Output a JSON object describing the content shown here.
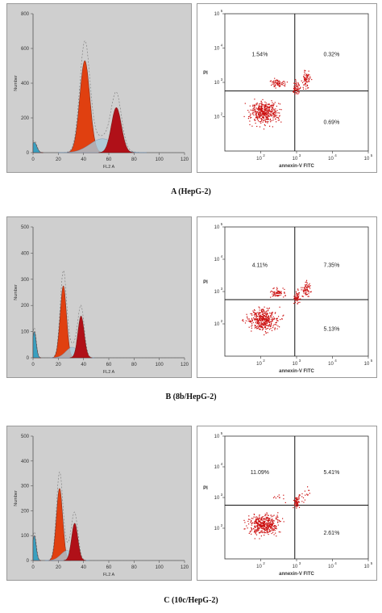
{
  "figure_labels": [
    "A (HepG-2)",
    "B (8b/HepG-2)",
    "C (10c/HepG-2)"
  ],
  "colors": {
    "g0g1": "#e04010",
    "s_phase": "#a8c8d8",
    "g2m": "#b01018",
    "debris": "#3aa0c0",
    "dots": "#cc1010",
    "hist_bg": "#cfcfcf"
  },
  "chart_data": [
    {
      "type": "area",
      "panel": "A",
      "xlabel": "FL2 A",
      "ylabel": "Number",
      "xlim": [
        0,
        120
      ],
      "ylim": [
        0,
        800
      ],
      "xticks": [
        "0",
        "20",
        "40",
        "60",
        "80",
        "100",
        "120"
      ],
      "yticks": [
        "0",
        "200",
        "400",
        "600",
        "800"
      ],
      "peaks": [
        {
          "phase": "debris",
          "center": 1,
          "height": 60,
          "width": 2
        },
        {
          "phase": "G0/G1",
          "center": 41,
          "height": 530,
          "width": 4
        },
        {
          "phase": "S",
          "center": 55,
          "height": 80,
          "width": 10
        },
        {
          "phase": "G2/M",
          "center": 66,
          "height": 260,
          "width": 4
        }
      ]
    },
    {
      "type": "scatter",
      "panel": "A",
      "xlabel": "annexin-V FITC",
      "ylabel": "PI",
      "xscale": "log",
      "yscale": "log",
      "xticks": [
        "10",
        "10",
        "10",
        "10"
      ],
      "xtick_exp": [
        "2",
        "3",
        "4",
        "5"
      ],
      "yticks": [
        "10",
        "10",
        "10",
        "10"
      ],
      "ytick_exp": [
        "2",
        "3",
        "4",
        "5"
      ],
      "quadrants": {
        "upper_left": "1.54%",
        "upper_right": "0.32%",
        "lower_right": "0.69%"
      }
    },
    {
      "type": "area",
      "panel": "B",
      "xlabel": "FL2 A",
      "ylabel": "Number",
      "xlim": [
        0,
        120
      ],
      "ylim": [
        0,
        500
      ],
      "xticks": [
        "0",
        "20",
        "40",
        "60",
        "80",
        "100",
        "120"
      ],
      "yticks": [
        "0",
        "100",
        "200",
        "300",
        "400",
        "500"
      ],
      "peaks": [
        {
          "phase": "debris",
          "center": 1,
          "height": 100,
          "width": 1.5
        },
        {
          "phase": "G0/G1",
          "center": 24,
          "height": 275,
          "width": 2.5
        },
        {
          "phase": "S",
          "center": 31,
          "height": 40,
          "width": 5
        },
        {
          "phase": "G2/M",
          "center": 38,
          "height": 160,
          "width": 2.5
        }
      ]
    },
    {
      "type": "scatter",
      "panel": "B",
      "xlabel": "annexin-V FITC",
      "ylabel": "PI",
      "xscale": "log",
      "yscale": "log",
      "xticks": [
        "10",
        "10",
        "10",
        "10"
      ],
      "xtick_exp": [
        "2",
        "3",
        "4",
        "5"
      ],
      "yticks": [
        "10",
        "10",
        "10",
        "10"
      ],
      "ytick_exp": [
        "2",
        "3",
        "4",
        "5"
      ],
      "quadrants": {
        "upper_left": "4.11%",
        "upper_right": "7.35%",
        "lower_right": "5.13%"
      }
    },
    {
      "type": "area",
      "panel": "C",
      "xlabel": "FL2 A",
      "ylabel": "Number",
      "xlim": [
        0,
        120
      ],
      "ylim": [
        0,
        500
      ],
      "xticks": [
        "0",
        "20",
        "40",
        "60",
        "80",
        "100",
        "120"
      ],
      "yticks": [
        "0",
        "100",
        "200",
        "300",
        "400",
        "500"
      ],
      "peaks": [
        {
          "phase": "debris",
          "center": 1,
          "height": 100,
          "width": 1.5
        },
        {
          "phase": "G0/G1",
          "center": 21,
          "height": 290,
          "width": 2.5
        },
        {
          "phase": "S",
          "center": 27,
          "height": 40,
          "width": 5
        },
        {
          "phase": "G2/M",
          "center": 33,
          "height": 150,
          "width": 2.5
        }
      ]
    },
    {
      "type": "scatter",
      "panel": "C",
      "xlabel": "annexin-V FITC",
      "ylabel": "PI",
      "xscale": "log",
      "yscale": "log",
      "xticks": [
        "10",
        "10",
        "10",
        "10"
      ],
      "xtick_exp": [
        "2",
        "3",
        "4",
        "5"
      ],
      "yticks": [
        "10",
        "10",
        "10",
        "10"
      ],
      "ytick_exp": [
        "2",
        "3",
        "4",
        "5"
      ],
      "quadrants": {
        "upper_left": "11.09%",
        "upper_right": "5.41%",
        "lower_right": "2.61%"
      }
    }
  ]
}
